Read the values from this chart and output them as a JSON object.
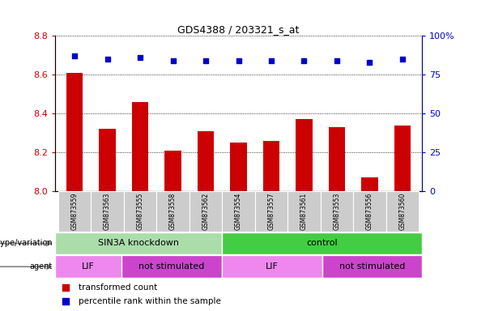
{
  "title": "GDS4388 / 203321_s_at",
  "samples": [
    "GSM873559",
    "GSM873563",
    "GSM873555",
    "GSM873558",
    "GSM873562",
    "GSM873554",
    "GSM873557",
    "GSM873561",
    "GSM873553",
    "GSM873556",
    "GSM873560"
  ],
  "transformed_counts": [
    8.61,
    8.32,
    8.46,
    8.21,
    8.31,
    8.25,
    8.26,
    8.37,
    8.33,
    8.07,
    8.34
  ],
  "percentile_ranks": [
    87,
    85,
    86,
    84,
    84,
    84,
    84,
    84,
    84,
    83,
    85
  ],
  "ylim_left": [
    8.0,
    8.8
  ],
  "ylim_right": [
    0,
    100
  ],
  "yticks_left": [
    8.0,
    8.2,
    8.4,
    8.6,
    8.8
  ],
  "yticks_right": [
    0,
    25,
    50,
    75,
    100
  ],
  "bar_color": "#cc0000",
  "dot_color": "#0000cc",
  "bar_width": 0.5,
  "genotype_groups": [
    {
      "label": "SIN3A knockdown",
      "span": [
        0,
        4
      ],
      "color": "#aaddaa"
    },
    {
      "label": "control",
      "span": [
        5,
        10
      ],
      "color": "#44cc44"
    }
  ],
  "agent_groups": [
    {
      "label": "LIF",
      "span": [
        0,
        1
      ],
      "color": "#ee88ee"
    },
    {
      "label": "not stimulated",
      "span": [
        2,
        4
      ],
      "color": "#cc55cc"
    },
    {
      "label": "LIF",
      "span": [
        5,
        7
      ],
      "color": "#ee88ee"
    },
    {
      "label": "not stimulated",
      "span": [
        8,
        10
      ],
      "color": "#cc55cc"
    }
  ],
  "legend_items": [
    {
      "label": "transformed count",
      "color": "#cc0000"
    },
    {
      "label": "percentile rank within the sample",
      "color": "#0000cc"
    }
  ],
  "left_axis_color": "#cc0000",
  "right_axis_color": "#0000cc",
  "sample_box_color": "#cccccc",
  "sample_box_edge_color": "#999999"
}
